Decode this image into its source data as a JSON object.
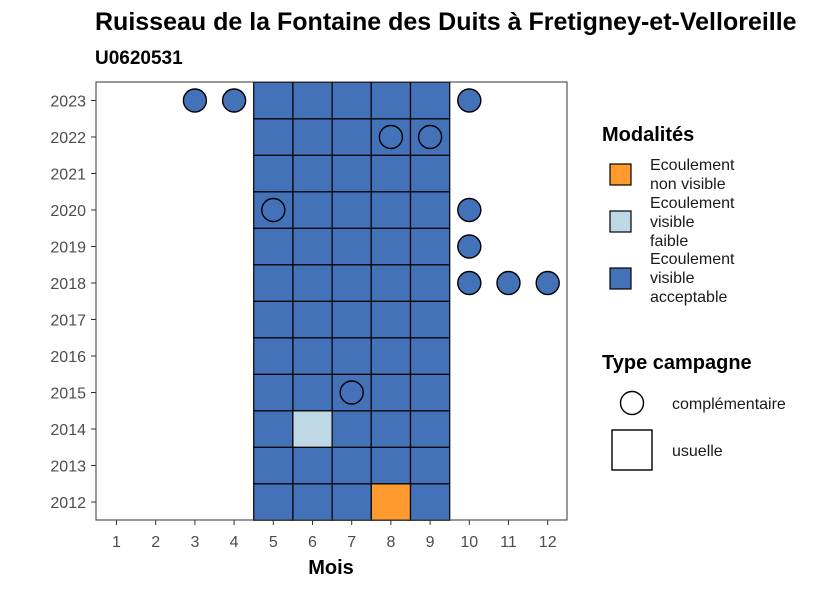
{
  "chart_data": {
    "type": "heatmap",
    "title": "Ruisseau de la Fontaine des Duits à Fretigney-et-Velloreille",
    "subtitle": "U0620531",
    "xlabel": "Mois",
    "ylabel": "",
    "x_ticks": [
      "1",
      "2",
      "3",
      "4",
      "5",
      "6",
      "7",
      "8",
      "9",
      "10",
      "11",
      "12"
    ],
    "y_ticks": [
      "2012",
      "2013",
      "2014",
      "2015",
      "2016",
      "2017",
      "2018",
      "2019",
      "2020",
      "2021",
      "2022",
      "2023"
    ],
    "xlim": [
      0.5,
      12.5
    ],
    "ylim": [
      2011.5,
      2023.5
    ],
    "grid": false,
    "legend_placement": "right",
    "modalites": {
      "title": "Modalités",
      "items": [
        {
          "key": "non_visible",
          "label": "Ecoulement non visible",
          "color": "#FF9A2E"
        },
        {
          "key": "visible_faible",
          "label": "Ecoulement visible faible",
          "color": "#BFD8E6"
        },
        {
          "key": "visible_acceptable",
          "label": "Ecoulement visible acceptable",
          "color": "#4472B8"
        }
      ]
    },
    "type_campagne": {
      "title": "Type campagne",
      "items": [
        {
          "key": "complementaire",
          "label": "complémentaire",
          "shape": "circle"
        },
        {
          "key": "usuelle",
          "label": "usuelle",
          "shape": "square"
        }
      ]
    },
    "usuelle_months": [
      5,
      6,
      7,
      8,
      9
    ],
    "usuelle_years": [
      2012,
      2013,
      2014,
      2015,
      2016,
      2017,
      2018,
      2019,
      2020,
      2021,
      2022,
      2023
    ],
    "usuelle_exceptions": [
      {
        "year": 2012,
        "month": 8,
        "modalite": "non_visible"
      },
      {
        "year": 2014,
        "month": 6,
        "modalite": "visible_faible"
      }
    ],
    "complementaire": [
      {
        "year": 2023,
        "month": 3,
        "modalite": "visible_acceptable"
      },
      {
        "year": 2023,
        "month": 4,
        "modalite": "visible_acceptable"
      },
      {
        "year": 2023,
        "month": 10,
        "modalite": "visible_acceptable"
      },
      {
        "year": 2022,
        "month": 8,
        "modalite": "visible_acceptable"
      },
      {
        "year": 2022,
        "month": 9,
        "modalite": "visible_acceptable"
      },
      {
        "year": 2020,
        "month": 5,
        "modalite": "visible_acceptable"
      },
      {
        "year": 2020,
        "month": 10,
        "modalite": "visible_acceptable"
      },
      {
        "year": 2019,
        "month": 10,
        "modalite": "visible_acceptable"
      },
      {
        "year": 2018,
        "month": 10,
        "modalite": "visible_acceptable"
      },
      {
        "year": 2018,
        "month": 11,
        "modalite": "visible_acceptable"
      },
      {
        "year": 2018,
        "month": 12,
        "modalite": "visible_acceptable"
      },
      {
        "year": 2015,
        "month": 7,
        "modalite": "visible_acceptable"
      }
    ]
  }
}
